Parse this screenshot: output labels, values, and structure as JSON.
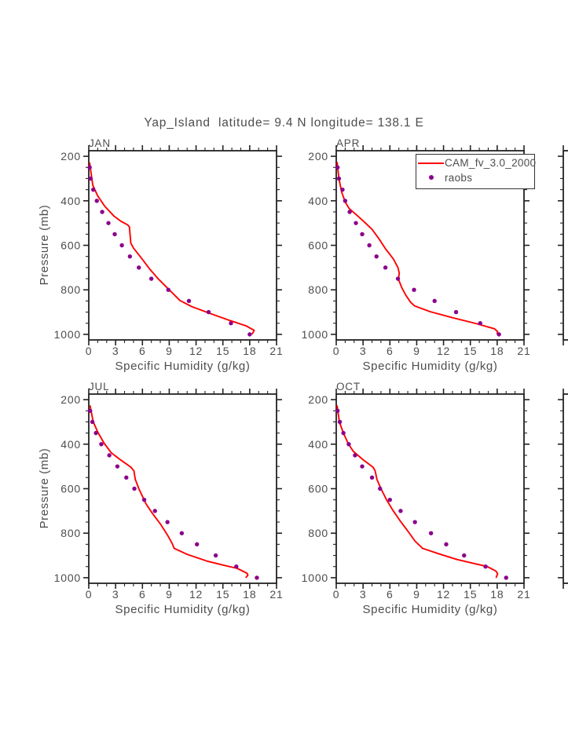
{
  "title": "Yap_Island  latitude= 9.4 N longitude= 138.1 E",
  "colors": {
    "cam_line": "#ff0000",
    "raobs_dot": "#8b008b",
    "frame": "#222222",
    "text": "#4d4d4d"
  },
  "legend": {
    "items": [
      {
        "label": "CAM_fv_3.0_2000",
        "type": "line",
        "color": "#ff0000"
      },
      {
        "label": "raobs",
        "type": "dot",
        "color": "#8b008b"
      }
    ]
  },
  "axes": {
    "x": {
      "label": "Specific Humidity (g/kg)",
      "range": [
        0,
        21
      ],
      "ticks": [
        0,
        3,
        6,
        9,
        12,
        15,
        18,
        21
      ],
      "minor_step": 1
    },
    "y": {
      "label": "Pressure (mb)",
      "range": [
        175,
        1025
      ],
      "ticks": [
        200,
        400,
        600,
        800,
        1000
      ],
      "minor_step": 50,
      "inverted": true
    }
  },
  "chart_data": [
    {
      "type": "line+scatter",
      "month": "JAN",
      "xlabel": "Specific Humidity (g/kg)",
      "ylabel": "Pressure (mb)",
      "series": [
        {
          "name": "CAM_fv_3.0_2000",
          "type": "line",
          "color": "#ff0000",
          "points": [
            [
              0.1,
              230
            ],
            [
              0.45,
              330
            ],
            [
              1.0,
              378
            ],
            [
              1.8,
              425
            ],
            [
              2.8,
              468
            ],
            [
              3.6,
              492
            ],
            [
              4.35,
              508
            ],
            [
              4.55,
              518
            ],
            [
              4.7,
              590
            ],
            [
              5.0,
              612
            ],
            [
              5.9,
              658
            ],
            [
              6.8,
              706
            ],
            [
              7.8,
              752
            ],
            [
              9.0,
              800
            ],
            [
              10.2,
              848
            ],
            [
              11.5,
              875
            ],
            [
              13.5,
              905
            ],
            [
              15.8,
              938
            ],
            [
              17.6,
              962
            ],
            [
              18.5,
              982
            ],
            [
              18.3,
              997
            ]
          ]
        },
        {
          "name": "raobs",
          "type": "scatter",
          "color": "#8b008b",
          "points": [
            [
              0.1,
              250
            ],
            [
              0.2,
              300
            ],
            [
              0.5,
              350
            ],
            [
              0.9,
              400
            ],
            [
              1.5,
              450
            ],
            [
              2.2,
              500
            ],
            [
              2.9,
              550
            ],
            [
              3.7,
              600
            ],
            [
              4.6,
              650
            ],
            [
              5.6,
              700
            ],
            [
              7.0,
              750
            ],
            [
              8.9,
              800
            ],
            [
              11.2,
              850
            ],
            [
              13.4,
              900
            ],
            [
              15.9,
              950
            ],
            [
              18.0,
              1000
            ]
          ]
        }
      ]
    },
    {
      "type": "line+scatter",
      "month": "APR",
      "xlabel": "Specific Humidity (g/kg)",
      "ylabel": "Pressure (mb)",
      "series": [
        {
          "name": "CAM_fv_3.0_2000",
          "type": "line",
          "color": "#ff0000",
          "points": [
            [
              0.1,
              228
            ],
            [
              0.3,
              300
            ],
            [
              0.6,
              360
            ],
            [
              1.0,
              405
            ],
            [
              1.45,
              435
            ],
            [
              2.4,
              468
            ],
            [
              3.4,
              505
            ],
            [
              4.0,
              528
            ],
            [
              4.8,
              572
            ],
            [
              5.5,
              615
            ],
            [
              6.4,
              662
            ],
            [
              6.9,
              700
            ],
            [
              7.05,
              725
            ],
            [
              6.95,
              752
            ],
            [
              7.35,
              792
            ],
            [
              7.8,
              825
            ],
            [
              8.3,
              855
            ],
            [
              8.75,
              872
            ],
            [
              10.5,
              898
            ],
            [
              13.0,
              925
            ],
            [
              15.5,
              950
            ],
            [
              17.7,
              975
            ],
            [
              18.05,
              988
            ],
            [
              18.0,
              998
            ]
          ]
        },
        {
          "name": "raobs",
          "type": "scatter",
          "color": "#8b008b",
          "points": [
            [
              0.15,
              250
            ],
            [
              0.3,
              300
            ],
            [
              0.7,
              350
            ],
            [
              1.0,
              400
            ],
            [
              1.5,
              450
            ],
            [
              2.2,
              500
            ],
            [
              2.9,
              550
            ],
            [
              3.7,
              600
            ],
            [
              4.5,
              650
            ],
            [
              5.5,
              700
            ],
            [
              6.9,
              750
            ],
            [
              8.7,
              800
            ],
            [
              11.0,
              850
            ],
            [
              13.4,
              900
            ],
            [
              16.1,
              950
            ],
            [
              18.2,
              1000
            ]
          ]
        }
      ]
    },
    {
      "type": "line+scatter",
      "month": "JUL",
      "xlabel": "Specific Humidity (g/kg)",
      "ylabel": "Pressure (mb)",
      "series": [
        {
          "name": "CAM_fv_3.0_2000",
          "type": "line",
          "color": "#ff0000",
          "points": [
            [
              0.15,
              228
            ],
            [
              0.5,
              300
            ],
            [
              1.0,
              345
            ],
            [
              1.7,
              395
            ],
            [
              2.5,
              438
            ],
            [
              3.6,
              472
            ],
            [
              4.7,
              503
            ],
            [
              5.05,
              520
            ],
            [
              5.2,
              558
            ],
            [
              5.6,
              600
            ],
            [
              6.4,
              668
            ],
            [
              7.1,
              710
            ],
            [
              8.0,
              758
            ],
            [
              8.8,
              808
            ],
            [
              9.35,
              848
            ],
            [
              9.55,
              868
            ],
            [
              11.0,
              895
            ],
            [
              13.2,
              925
            ],
            [
              15.2,
              945
            ],
            [
              16.6,
              958
            ],
            [
              17.7,
              980
            ],
            [
              17.8,
              988
            ],
            [
              17.6,
              998
            ]
          ]
        },
        {
          "name": "raobs",
          "type": "scatter",
          "color": "#8b008b",
          "points": [
            [
              0.15,
              250
            ],
            [
              0.4,
              300
            ],
            [
              0.8,
              350
            ],
            [
              1.4,
              400
            ],
            [
              2.3,
              450
            ],
            [
              3.2,
              500
            ],
            [
              4.2,
              550
            ],
            [
              5.1,
              600
            ],
            [
              6.2,
              650
            ],
            [
              7.4,
              700
            ],
            [
              8.8,
              750
            ],
            [
              10.4,
              800
            ],
            [
              12.1,
              850
            ],
            [
              14.2,
              900
            ],
            [
              16.5,
              950
            ],
            [
              18.8,
              1000
            ]
          ]
        }
      ]
    },
    {
      "type": "line+scatter",
      "month": "OCT",
      "xlabel": "Specific Humidity (g/kg)",
      "ylabel": "Pressure (mb)",
      "series": [
        {
          "name": "CAM_fv_3.0_2000",
          "type": "line",
          "color": "#ff0000",
          "points": [
            [
              0.1,
              228
            ],
            [
              0.35,
              300
            ],
            [
              0.8,
              350
            ],
            [
              1.35,
              398
            ],
            [
              1.9,
              432
            ],
            [
              3.0,
              470
            ],
            [
              4.1,
              503
            ],
            [
              4.35,
              520
            ],
            [
              4.55,
              558
            ],
            [
              5.0,
              600
            ],
            [
              5.6,
              648
            ],
            [
              6.3,
              695
            ],
            [
              7.1,
              742
            ],
            [
              8.0,
              790
            ],
            [
              8.8,
              835
            ],
            [
              9.65,
              868
            ],
            [
              11.5,
              893
            ],
            [
              13.5,
              918
            ],
            [
              15.6,
              938
            ],
            [
              16.9,
              950
            ],
            [
              17.85,
              970
            ],
            [
              18.05,
              982
            ],
            [
              17.9,
              998
            ]
          ]
        },
        {
          "name": "raobs",
          "type": "scatter",
          "color": "#8b008b",
          "points": [
            [
              0.15,
              250
            ],
            [
              0.4,
              300
            ],
            [
              0.8,
              350
            ],
            [
              1.4,
              400
            ],
            [
              2.1,
              450
            ],
            [
              2.9,
              500
            ],
            [
              4.0,
              550
            ],
            [
              4.9,
              600
            ],
            [
              6.0,
              650
            ],
            [
              7.2,
              700
            ],
            [
              8.8,
              750
            ],
            [
              10.6,
              800
            ],
            [
              12.3,
              850
            ],
            [
              14.3,
              900
            ],
            [
              16.7,
              950
            ],
            [
              19.0,
              1000
            ]
          ]
        }
      ]
    }
  ]
}
